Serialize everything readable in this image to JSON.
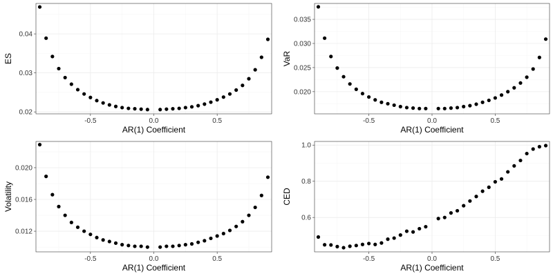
{
  "chart_data": [
    {
      "type": "scatter",
      "id": "es",
      "xlabel": "AR(1) Coefficient",
      "ylabel": "ES",
      "xlim": [
        -0.93,
        0.93
      ],
      "ylim": [
        0.0195,
        0.0478
      ],
      "xticks": [
        -0.5,
        0.0,
        0.5
      ],
      "xtick_labels": [
        "-0.5",
        "0.0",
        "0.5"
      ],
      "yticks": [
        0.02,
        0.03,
        0.04
      ],
      "ytick_labels": [
        "0.02",
        "0.03",
        "0.04"
      ],
      "grid": true,
      "points": [
        [
          -0.9,
          0.0469
        ],
        [
          -0.85,
          0.0389
        ],
        [
          -0.8,
          0.0342
        ],
        [
          -0.75,
          0.0311
        ],
        [
          -0.7,
          0.0288
        ],
        [
          -0.65,
          0.0271
        ],
        [
          -0.6,
          0.0257
        ],
        [
          -0.55,
          0.0246
        ],
        [
          -0.5,
          0.0237
        ],
        [
          -0.45,
          0.0229
        ],
        [
          -0.4,
          0.0223
        ],
        [
          -0.35,
          0.0218
        ],
        [
          -0.3,
          0.0214
        ],
        [
          -0.25,
          0.0211
        ],
        [
          -0.2,
          0.0209
        ],
        [
          -0.15,
          0.0208
        ],
        [
          -0.1,
          0.0207
        ],
        [
          -0.05,
          0.0206
        ],
        [
          0.05,
          0.0206
        ],
        [
          0.1,
          0.0207
        ],
        [
          0.15,
          0.0208
        ],
        [
          0.2,
          0.0209
        ],
        [
          0.25,
          0.0211
        ],
        [
          0.3,
          0.0213
        ],
        [
          0.35,
          0.0216
        ],
        [
          0.4,
          0.022
        ],
        [
          0.45,
          0.0225
        ],
        [
          0.5,
          0.0231
        ],
        [
          0.55,
          0.0238
        ],
        [
          0.6,
          0.0246
        ],
        [
          0.65,
          0.0256
        ],
        [
          0.7,
          0.0268
        ],
        [
          0.75,
          0.0285
        ],
        [
          0.8,
          0.0308
        ],
        [
          0.85,
          0.034
        ],
        [
          0.9,
          0.0386
        ],
        [
          0.95,
          0.0464
        ]
      ]
    },
    {
      "type": "scatter",
      "id": "var",
      "xlabel": "AR(1) Coefficient",
      "ylabel": "VaR",
      "xlim": [
        -0.93,
        0.93
      ],
      "ylim": [
        0.0154,
        0.0383
      ],
      "xticks": [
        -0.5,
        0.0,
        0.5
      ],
      "xtick_labels": [
        "-0.5",
        "0.0",
        "0.5"
      ],
      "yticks": [
        0.02,
        0.025,
        0.03,
        0.035
      ],
      "ytick_labels": [
        "0.020",
        "0.025",
        "0.030",
        "0.035"
      ],
      "grid": true,
      "points": [
        [
          -0.9,
          0.0376
        ],
        [
          -0.85,
          0.0311
        ],
        [
          -0.8,
          0.0273
        ],
        [
          -0.75,
          0.0249
        ],
        [
          -0.7,
          0.0231
        ],
        [
          -0.65,
          0.0216
        ],
        [
          -0.6,
          0.0205
        ],
        [
          -0.55,
          0.0196
        ],
        [
          -0.5,
          0.0189
        ],
        [
          -0.45,
          0.0183
        ],
        [
          -0.4,
          0.0178
        ],
        [
          -0.35,
          0.0175
        ],
        [
          -0.3,
          0.0172
        ],
        [
          -0.25,
          0.0169
        ],
        [
          -0.2,
          0.0167
        ],
        [
          -0.15,
          0.0166
        ],
        [
          -0.1,
          0.0165
        ],
        [
          -0.05,
          0.0165
        ],
        [
          0.05,
          0.0165
        ],
        [
          0.1,
          0.0165
        ],
        [
          0.15,
          0.0166
        ],
        [
          0.2,
          0.0167
        ],
        [
          0.25,
          0.0169
        ],
        [
          0.3,
          0.0171
        ],
        [
          0.35,
          0.0174
        ],
        [
          0.4,
          0.0178
        ],
        [
          0.45,
          0.0182
        ],
        [
          0.5,
          0.0187
        ],
        [
          0.55,
          0.0193
        ],
        [
          0.6,
          0.02
        ],
        [
          0.65,
          0.0208
        ],
        [
          0.7,
          0.0218
        ],
        [
          0.75,
          0.023
        ],
        [
          0.8,
          0.0247
        ],
        [
          0.85,
          0.0271
        ],
        [
          0.9,
          0.0309
        ],
        [
          0.95,
          0.0372
        ]
      ]
    },
    {
      "type": "scatter",
      "id": "volatility",
      "xlabel": "AR(1) Coefficient",
      "ylabel": "Volatility",
      "xlim": [
        -0.93,
        0.93
      ],
      "ylim": [
        0.0094,
        0.0233
      ],
      "xticks": [
        -0.5,
        0.0,
        0.5
      ],
      "xtick_labels": [
        "-0.5",
        "0.0",
        "0.5"
      ],
      "yticks": [
        0.012,
        0.016,
        0.02
      ],
      "ytick_labels": [
        "0.012",
        "0.016",
        "0.020"
      ],
      "grid": true,
      "points": [
        [
          -0.9,
          0.0229
        ],
        [
          -0.85,
          0.0189
        ],
        [
          -0.8,
          0.0166
        ],
        [
          -0.75,
          0.0151
        ],
        [
          -0.7,
          0.014
        ],
        [
          -0.65,
          0.0131
        ],
        [
          -0.6,
          0.0125
        ],
        [
          -0.55,
          0.012
        ],
        [
          -0.5,
          0.0116
        ],
        [
          -0.45,
          0.0112
        ],
        [
          -0.4,
          0.0109
        ],
        [
          -0.35,
          0.0107
        ],
        [
          -0.3,
          0.0105
        ],
        [
          -0.25,
          0.0103
        ],
        [
          -0.2,
          0.0102
        ],
        [
          -0.15,
          0.0101
        ],
        [
          -0.1,
          0.0101
        ],
        [
          -0.05,
          0.01
        ],
        [
          0.05,
          0.01
        ],
        [
          0.1,
          0.0101
        ],
        [
          0.15,
          0.0101
        ],
        [
          0.2,
          0.0102
        ],
        [
          0.25,
          0.0103
        ],
        [
          0.3,
          0.0104
        ],
        [
          0.35,
          0.0106
        ],
        [
          0.4,
          0.0108
        ],
        [
          0.45,
          0.0111
        ],
        [
          0.5,
          0.0114
        ],
        [
          0.55,
          0.0117
        ],
        [
          0.6,
          0.0121
        ],
        [
          0.65,
          0.0126
        ],
        [
          0.7,
          0.0132
        ],
        [
          0.75,
          0.014
        ],
        [
          0.8,
          0.015
        ],
        [
          0.85,
          0.0165
        ],
        [
          0.9,
          0.0188
        ],
        [
          0.95,
          0.0227
        ]
      ]
    },
    {
      "type": "scatter",
      "id": "ced",
      "xlabel": "AR(1) Coefficient",
      "ylabel": "CED",
      "xlim": [
        -0.93,
        0.93
      ],
      "ylim": [
        0.41,
        1.02
      ],
      "xticks": [
        -0.5,
        0.0,
        0.5
      ],
      "xtick_labels": [
        "-0.5",
        "0.0",
        "0.5"
      ],
      "yticks": [
        0.6,
        0.8,
        1.0
      ],
      "ytick_labels": [
        "0.6",
        "0.8",
        "1.0"
      ],
      "grid": true,
      "points": [
        [
          -0.9,
          0.492
        ],
        [
          -0.85,
          0.449
        ],
        [
          -0.8,
          0.448
        ],
        [
          -0.75,
          0.439
        ],
        [
          -0.7,
          0.433
        ],
        [
          -0.65,
          0.441
        ],
        [
          -0.6,
          0.445
        ],
        [
          -0.55,
          0.451
        ],
        [
          -0.5,
          0.456
        ],
        [
          -0.45,
          0.451
        ],
        [
          -0.4,
          0.459
        ],
        [
          -0.35,
          0.48
        ],
        [
          -0.3,
          0.486
        ],
        [
          -0.25,
          0.503
        ],
        [
          -0.2,
          0.524
        ],
        [
          -0.15,
          0.52
        ],
        [
          -0.1,
          0.538
        ],
        [
          -0.05,
          0.549
        ],
        [
          0.05,
          0.594
        ],
        [
          0.1,
          0.6
        ],
        [
          0.15,
          0.625
        ],
        [
          0.2,
          0.637
        ],
        [
          0.25,
          0.665
        ],
        [
          0.3,
          0.691
        ],
        [
          0.35,
          0.716
        ],
        [
          0.4,
          0.745
        ],
        [
          0.45,
          0.767
        ],
        [
          0.5,
          0.797
        ],
        [
          0.55,
          0.813
        ],
        [
          0.6,
          0.852
        ],
        [
          0.65,
          0.885
        ],
        [
          0.7,
          0.915
        ],
        [
          0.75,
          0.953
        ],
        [
          0.8,
          0.978
        ],
        [
          0.85,
          0.991
        ],
        [
          0.9,
          0.997
        ]
      ]
    }
  ]
}
